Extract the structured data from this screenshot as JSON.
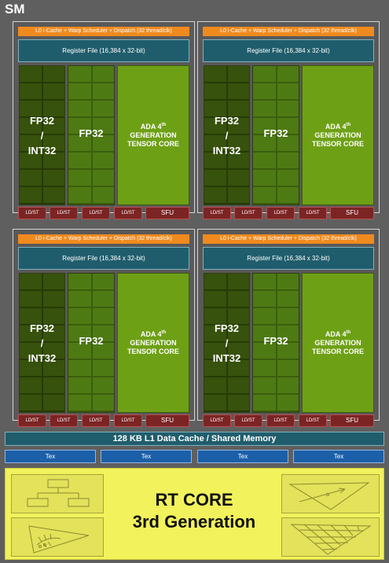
{
  "sm_label": "SM",
  "quadrant": {
    "l0_cache": "L0 i-Cache + Warp Scheduler + Dispatch (32 thread/clk)",
    "register_file": "Register File (16,384 x 32-bit)",
    "fp32_int32_line1": "FP32",
    "fp32_int32_line2": "/",
    "fp32_int32_line3": "INT32",
    "fp32": "FP32",
    "tensor_line1": "ADA 4",
    "tensor_sup": "th",
    "tensor_line2": "GENERATION",
    "tensor_line3": "TENSOR CORE",
    "ldst": "LD/ST",
    "sfu": "SFU"
  },
  "l1_cache": "128 KB L1 Data Cache / Shared Memory",
  "tex_units": [
    "Tex",
    "Tex",
    "Tex",
    "Tex"
  ],
  "rt_core": {
    "line1": "RT CORE",
    "line2": "3rd Generation"
  },
  "colors": {
    "background": "#5f5f5f",
    "l0_orange": "#f08a1e",
    "register_teal": "#205d6c",
    "int_green_dark": "#37520c",
    "fp_green": "#4e7a13",
    "tensor_green": "#6ea016",
    "ldst_red": "#7c2424",
    "tex_blue": "#1b5fa8",
    "rt_yellow": "#f2f25c"
  }
}
